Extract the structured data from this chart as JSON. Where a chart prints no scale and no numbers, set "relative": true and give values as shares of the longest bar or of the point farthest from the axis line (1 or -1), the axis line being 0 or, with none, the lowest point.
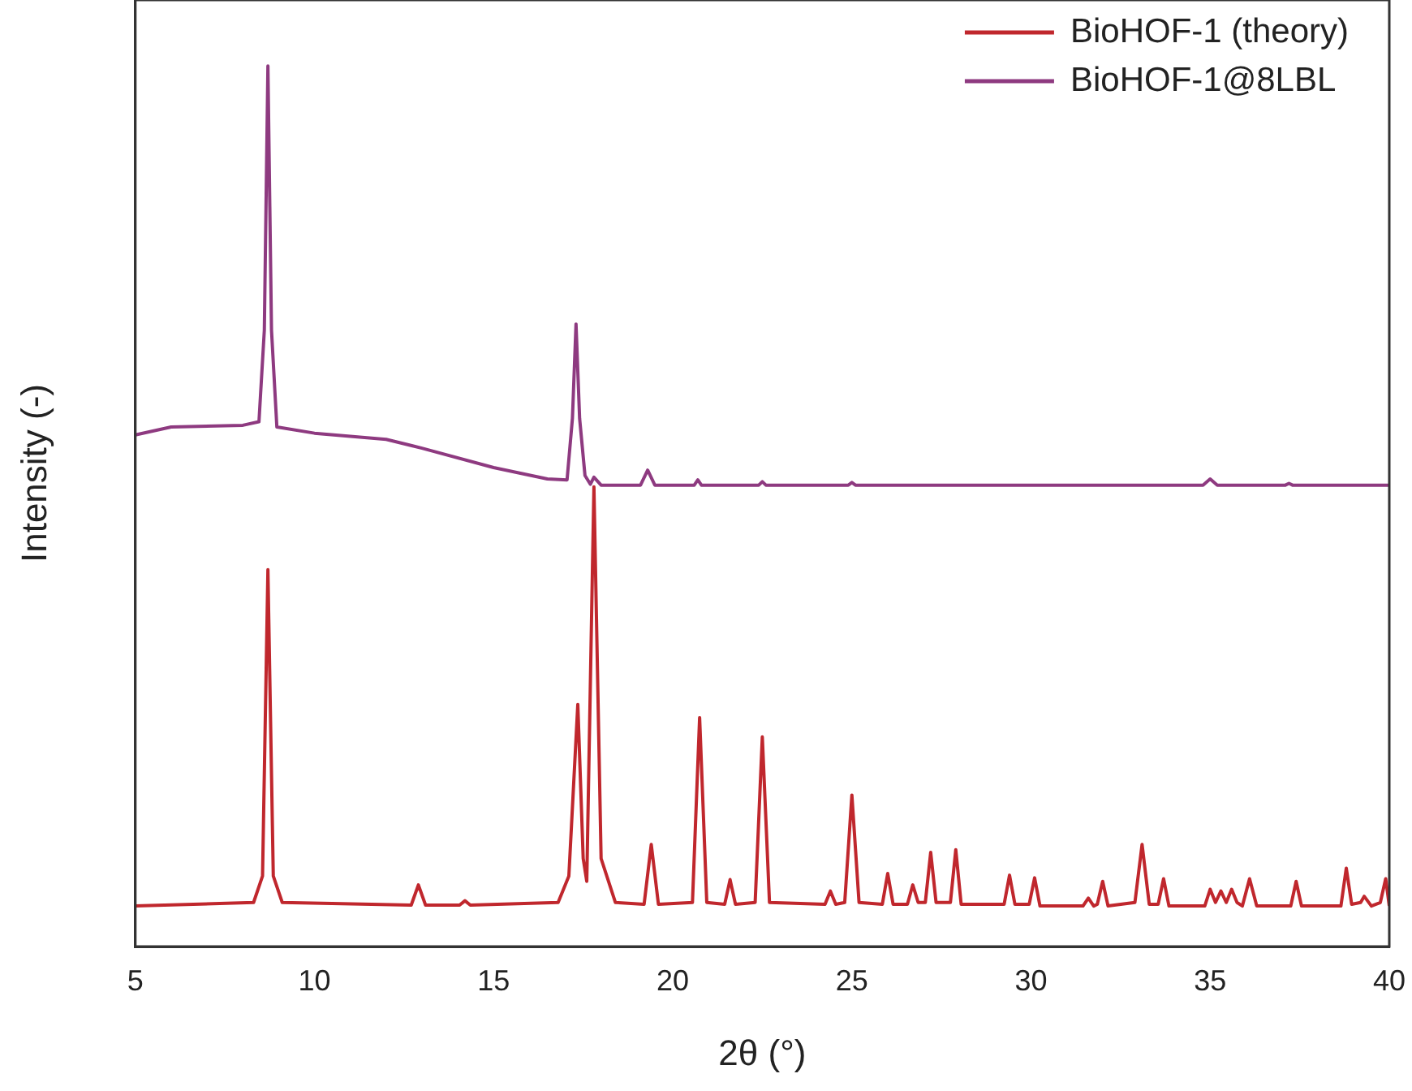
{
  "chart_data": {
    "type": "line",
    "relative": true,
    "xlabel": "2θ (°)",
    "ylabel": "Intensity (-)",
    "xlim": [
      5,
      40
    ],
    "xticks": [
      5,
      10,
      15,
      20,
      25,
      30,
      35,
      40
    ],
    "tick_labels": "x",
    "legend": "top right",
    "grid": false,
    "marker": "none",
    "line_style": "solid",
    "series": [
      {
        "name": "BioHOF-1 (theory)",
        "color": "#c0272d",
        "x": [
          5,
          8.3,
          8.55,
          8.7,
          8.85,
          9.1,
          12.7,
          12.9,
          13.1,
          14.05,
          14.2,
          14.35,
          16.8,
          17.1,
          17.35,
          17.5,
          17.6,
          17.8,
          18.0,
          18.4,
          19.2,
          19.4,
          19.6,
          20.55,
          20.75,
          20.95,
          21.45,
          21.6,
          21.75,
          22.3,
          22.5,
          22.7,
          24.25,
          24.4,
          24.55,
          24.8,
          25.0,
          25.2,
          25.85,
          26.0,
          26.15,
          26.55,
          26.7,
          26.85,
          27.05,
          27.2,
          27.35,
          27.75,
          27.9,
          28.05,
          29.25,
          29.4,
          29.55,
          29.95,
          30.1,
          30.25,
          31.45,
          31.6,
          31.75,
          31.85,
          32.0,
          32.15,
          32.9,
          33.1,
          33.3,
          33.55,
          33.7,
          33.85,
          34.85,
          35.0,
          35.15,
          35.3,
          35.45,
          35.6,
          35.75,
          35.9,
          36.1,
          36.3,
          37.25,
          37.4,
          37.55,
          38.65,
          38.8,
          38.95,
          39.2,
          39.3,
          39.5,
          39.75,
          39.9,
          40
        ],
        "values": [
          0.046,
          0.05,
          0.08,
          0.428,
          0.08,
          0.05,
          0.047,
          0.07,
          0.047,
          0.047,
          0.052,
          0.047,
          0.05,
          0.08,
          0.275,
          0.1,
          0.074,
          0.522,
          0.1,
          0.05,
          0.048,
          0.116,
          0.048,
          0.05,
          0.26,
          0.05,
          0.048,
          0.076,
          0.048,
          0.05,
          0.238,
          0.05,
          0.048,
          0.063,
          0.048,
          0.05,
          0.172,
          0.05,
          0.048,
          0.083,
          0.048,
          0.048,
          0.07,
          0.05,
          0.05,
          0.107,
          0.05,
          0.05,
          0.11,
          0.048,
          0.048,
          0.081,
          0.048,
          0.048,
          0.078,
          0.046,
          0.046,
          0.055,
          0.046,
          0.048,
          0.074,
          0.046,
          0.05,
          0.116,
          0.048,
          0.048,
          0.077,
          0.046,
          0.046,
          0.065,
          0.05,
          0.063,
          0.05,
          0.065,
          0.05,
          0.046,
          0.077,
          0.046,
          0.046,
          0.074,
          0.046,
          0.046,
          0.089,
          0.048,
          0.05,
          0.057,
          0.046,
          0.05,
          0.077,
          0.046
        ]
      },
      {
        "name": "BioHOF-1@8LBL",
        "color": "#8e3a80",
        "x": [
          5,
          6,
          8,
          8.45,
          8.6,
          8.7,
          8.8,
          8.95,
          10,
          12,
          13,
          15,
          16.5,
          17.05,
          17.2,
          17.3,
          17.4,
          17.55,
          17.7,
          17.8,
          18,
          19.1,
          19.3,
          19.5,
          20.6,
          20.7,
          20.8,
          22.4,
          22.5,
          22.6,
          24.9,
          25,
          25.1,
          34.8,
          35,
          35.2,
          37.1,
          37.2,
          37.3,
          40
        ],
        "values": [
          0.581,
          0.59,
          0.592,
          0.596,
          0.7,
          1.0,
          0.7,
          0.59,
          0.583,
          0.576,
          0.566,
          0.544,
          0.531,
          0.53,
          0.6,
          0.707,
          0.6,
          0.535,
          0.525,
          0.533,
          0.524,
          0.524,
          0.541,
          0.524,
          0.524,
          0.53,
          0.524,
          0.524,
          0.528,
          0.524,
          0.524,
          0.527,
          0.524,
          0.524,
          0.531,
          0.524,
          0.524,
          0.526,
          0.524,
          0.524
        ]
      }
    ]
  }
}
